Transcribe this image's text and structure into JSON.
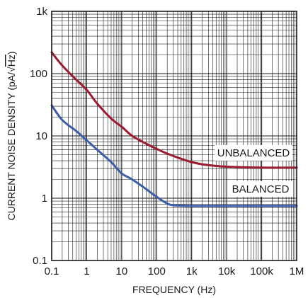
{
  "chart_data": {
    "type": "line",
    "xscale": "log",
    "yscale": "log",
    "xlim": [
      0.1,
      1000000
    ],
    "ylim": [
      0.1,
      1000
    ],
    "grid": true,
    "xlabel": "FREQUENCY (Hz)",
    "ylabel": "CURRENT NOISE DENSITY (pA/√Hz)",
    "ylabel_prefix": "CURRENT NOISE DENSITY (pA/",
    "ylabel_root": "√",
    "ylabel_radicand": "Hz",
    "ylabel_suffix": ")",
    "xticks": [
      {
        "value": 0.1,
        "label": "0.1"
      },
      {
        "value": 1,
        "label": "1"
      },
      {
        "value": 10,
        "label": "10"
      },
      {
        "value": 100,
        "label": "100"
      },
      {
        "value": 1000,
        "label": "1k"
      },
      {
        "value": 10000,
        "label": "10k"
      },
      {
        "value": 100000,
        "label": "100k"
      },
      {
        "value": 1000000,
        "label": "1M"
      }
    ],
    "yticks": [
      {
        "value": 0.1,
        "label": "0.1"
      },
      {
        "value": 1,
        "label": "1"
      },
      {
        "value": 10,
        "label": "10"
      },
      {
        "value": 100,
        "label": "100"
      },
      {
        "value": 1000,
        "label": "1k"
      }
    ],
    "series": [
      {
        "name": "UNBALANCED",
        "color": "#9b1b30",
        "x": [
          0.1,
          0.2,
          0.5,
          1,
          2,
          5,
          10,
          20,
          50,
          100,
          200,
          500,
          1000,
          2000,
          5000,
          10000,
          100000,
          1000000
        ],
        "y": [
          220,
          135,
          80,
          55,
          33,
          19,
          14,
          10,
          7.5,
          6.2,
          5.2,
          4.3,
          3.8,
          3.5,
          3.3,
          3.2,
          3.1,
          3.1
        ]
      },
      {
        "name": "BALANCED",
        "color": "#3b5ea8",
        "x": [
          0.1,
          0.2,
          0.5,
          1,
          2,
          5,
          10,
          20,
          50,
          100,
          200,
          300,
          500,
          1000,
          10000,
          100000,
          1000000
        ],
        "y": [
          31,
          18,
          12,
          8.5,
          6,
          3.8,
          2.5,
          2,
          1.4,
          1.05,
          0.82,
          0.77,
          0.76,
          0.75,
          0.75,
          0.75,
          0.75
        ]
      }
    ]
  }
}
